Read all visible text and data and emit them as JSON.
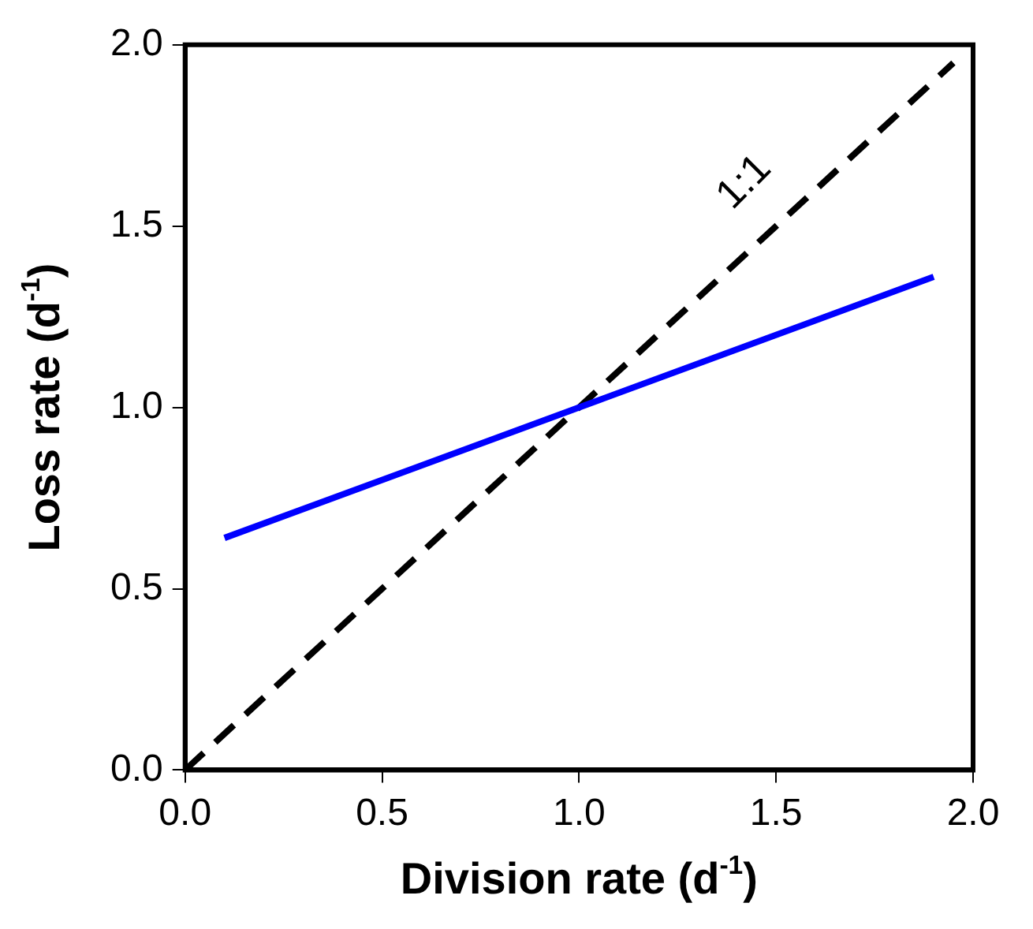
{
  "chart_data": {
    "type": "line",
    "xlabel": "Division rate (d$^{-1}$)",
    "ylabel": "Loss rate (d$^{-1}$)",
    "xlim": [
      0,
      2
    ],
    "ylim": [
      0,
      2
    ],
    "xticks": [
      {
        "value": 0,
        "label": "0.0"
      },
      {
        "value": 0.5,
        "label": "0.5"
      },
      {
        "value": 1,
        "label": "1.0"
      },
      {
        "value": 1.5,
        "label": "1.5"
      },
      {
        "value": 2,
        "label": "2.0"
      }
    ],
    "yticks": [
      {
        "value": 0,
        "label": "0.0"
      },
      {
        "value": 0.5,
        "label": "0.5"
      },
      {
        "value": 1,
        "label": "1.0"
      },
      {
        "value": 1.5,
        "label": "1.5"
      },
      {
        "value": 2,
        "label": "2.0"
      }
    ],
    "series": [
      {
        "color": "#0000ff",
        "x": [
          0.1,
          1.9
        ],
        "values": [
          0.64,
          1.36
        ],
        "line_style": "solid"
      },
      {
        "color": "#000000",
        "x": [
          0,
          1.95
        ],
        "values": [
          0,
          1.95
        ],
        "line_style": "dashed"
      }
    ],
    "annotations": [
      "1:1"
    ],
    "grid": false,
    "legend": false,
    "marker": "none"
  }
}
